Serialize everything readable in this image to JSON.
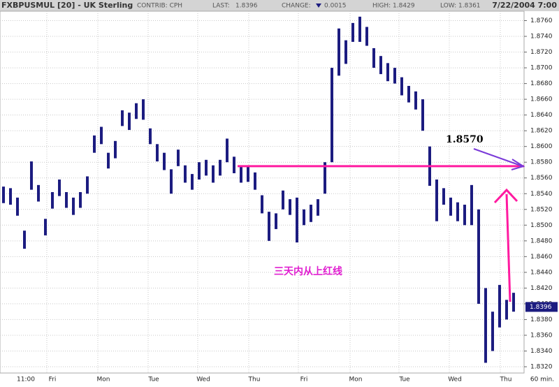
{
  "header": {
    "title": "FXBPUSMUL [20] - UK Sterling",
    "contrib": "CONTRIB: CPH",
    "last": {
      "label": "LAST:",
      "value": "1.8396"
    },
    "change": {
      "label": "CHANGE:",
      "value": "0.0015"
    },
    "high": "HIGH: 1.8429",
    "low": "LOW: 1.8361",
    "datetime": "7/22/2004 7:00"
  },
  "chart_data": {
    "type": "range_bar",
    "color": "#1c1c80",
    "high": [
      1.8549,
      1.8547,
      1.8535,
      1.8493,
      1.8581,
      1.8551,
      1.8508,
      1.8542,
      1.8558,
      1.8542,
      1.8535,
      1.8542,
      1.8562,
      1.8614,
      1.8625,
      1.8592,
      1.8607,
      1.8646,
      1.8643,
      1.8655,
      1.866,
      1.8623,
      1.8603,
      1.8592,
      1.8571,
      1.8596,
      1.8576,
      1.8565,
      1.858,
      1.8583,
      1.8576,
      1.8583,
      1.861,
      1.8587,
      1.8576,
      1.8574,
      1.8567,
      1.8538,
      1.8517,
      1.8515,
      1.8544,
      1.8533,
      1.8535,
      1.852,
      1.8526,
      1.8533,
      1.858,
      1.87,
      1.875,
      1.8735,
      1.8757,
      1.8765,
      1.8752,
      1.8725,
      1.8715,
      1.8706,
      1.87,
      1.8688,
      1.8677,
      1.867,
      1.866,
      1.86,
      1.8558,
      1.8547,
      1.8535,
      1.8529,
      1.8526,
      1.8551,
      1.852,
      1.842,
      1.839,
      1.8424,
      1.8405,
      1.8414
    ],
    "low": [
      1.8528,
      1.8526,
      1.8512,
      1.847,
      1.8545,
      1.853,
      1.8487,
      1.8521,
      1.8537,
      1.8522,
      1.8513,
      1.8522,
      1.854,
      1.8592,
      1.8603,
      1.8572,
      1.8585,
      1.8626,
      1.8621,
      1.8635,
      1.8634,
      1.8603,
      1.8581,
      1.857,
      1.854,
      1.8575,
      1.8554,
      1.8545,
      1.8558,
      1.8563,
      1.8554,
      1.8563,
      1.858,
      1.8566,
      1.8554,
      1.8555,
      1.8545,
      1.8515,
      1.848,
      1.8495,
      1.852,
      1.8513,
      1.8478,
      1.85,
      1.8504,
      1.8512,
      1.854,
      1.858,
      1.869,
      1.8705,
      1.8733,
      1.8733,
      1.8728,
      1.87,
      1.8692,
      1.8683,
      1.868,
      1.8665,
      1.8656,
      1.8647,
      1.862,
      1.855,
      1.8505,
      1.8526,
      1.8512,
      1.8505,
      1.85,
      1.85,
      1.84,
      1.8325,
      1.834,
      1.837,
      1.838,
      1.839
    ],
    "xlabels": [
      "11:00",
      "Fri",
      "Mon",
      "Tue",
      "Wed",
      "Thu",
      "Fri",
      "Mon",
      "Tue",
      "Wed",
      "Thu"
    ],
    "xunit": "60 min.",
    "ylim": [
      1.8312,
      1.8772
    ],
    "yticks": [
      {
        "value": 1.832,
        "label": "1.8320"
      },
      {
        "value": 1.834,
        "label": "1.8340"
      },
      {
        "value": 1.836,
        "label": "1.8360"
      },
      {
        "value": 1.838,
        "label": "1.8380"
      },
      {
        "value": 1.84,
        "label": "1.8400"
      },
      {
        "value": 1.842,
        "label": "1.8420"
      },
      {
        "value": 1.844,
        "label": "1.8440"
      },
      {
        "value": 1.846,
        "label": "1.8460"
      },
      {
        "value": 1.848,
        "label": "1.8480"
      },
      {
        "value": 1.85,
        "label": "1.8500"
      },
      {
        "value": 1.852,
        "label": "1.8520"
      },
      {
        "value": 1.854,
        "label": "1.8540"
      },
      {
        "value": 1.856,
        "label": "1.8560"
      },
      {
        "value": 1.858,
        "label": "1.8580"
      },
      {
        "value": 1.86,
        "label": "1.8600"
      },
      {
        "value": 1.862,
        "label": "1.8620"
      },
      {
        "value": 1.864,
        "label": "1.8640"
      },
      {
        "value": 1.866,
        "label": "1.8660"
      },
      {
        "value": 1.868,
        "label": "1.8680"
      },
      {
        "value": 1.87,
        "label": "1.8700"
      },
      {
        "value": 1.872,
        "label": "1.8720"
      },
      {
        "value": 1.874,
        "label": "1.8740"
      },
      {
        "value": 1.876,
        "label": "1.8760"
      }
    ],
    "grid": true,
    "reference_line": {
      "value": 1.8575,
      "color": "#ff1aa0"
    },
    "annotations": {
      "level": "1.8570",
      "note": "三天内从上红线"
    }
  }
}
